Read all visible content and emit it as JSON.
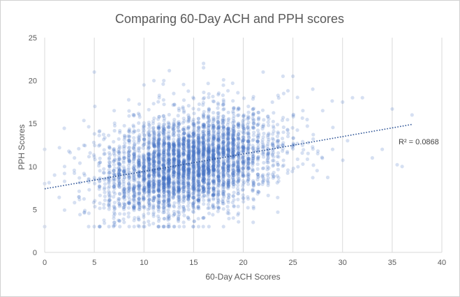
{
  "chart_data": {
    "type": "scatter",
    "title": "Comparing 60-Day ACH and PPH scores",
    "xlabel": "60-Day ACH Scores",
    "ylabel": "PPH Scores",
    "xlim": [
      0,
      40
    ],
    "ylim": [
      0,
      25
    ],
    "x_ticks": [
      0,
      5,
      10,
      15,
      20,
      25,
      30,
      35,
      40
    ],
    "y_ticks": [
      0,
      5,
      10,
      15,
      20,
      25
    ],
    "grid": {
      "vertical": true,
      "horizontal": false
    },
    "legend": "none",
    "colors": {
      "points": "#4472c4",
      "trendline": "#2f5597",
      "grid": "#d9d9d9",
      "text": "#595959"
    },
    "series": [
      {
        "points_summary": {
          "approx_count": 4000,
          "x_mean": 14.5,
          "x_sd": 4.3,
          "x_range": [
            0,
            37
          ],
          "y_mean": 10.5,
          "y_sd": 3.0,
          "y_range": [
            3,
            22
          ]
        },
        "x": [
          0,
          0,
          5,
          35,
          37,
          36,
          32,
          31,
          30,
          28,
          27,
          26,
          25,
          24,
          22,
          16,
          16,
          16,
          14,
          19,
          21,
          8,
          9,
          12,
          3,
          2,
          1,
          33,
          34,
          35.5,
          30.5,
          29,
          27.5,
          24.5,
          11,
          10,
          13,
          18,
          7
        ],
        "y": [
          12,
          8,
          21,
          16.7,
          16,
          10,
          18,
          18,
          17.5,
          16.5,
          19,
          16.5,
          20.5,
          20.5,
          21,
          22,
          21.5,
          4,
          3.5,
          4,
          3.5,
          3.5,
          16,
          20,
          11,
          10,
          9,
          11,
          12,
          10.2,
          13,
          12,
          11.5,
          13.5,
          20,
          19.5,
          18.5,
          17.2,
          16.5
        ]
      }
    ],
    "trendline": {
      "type": "linear",
      "label": "R² = 0.0868",
      "x": [
        0,
        37
      ],
      "y": [
        7.4,
        14.9
      ]
    }
  }
}
